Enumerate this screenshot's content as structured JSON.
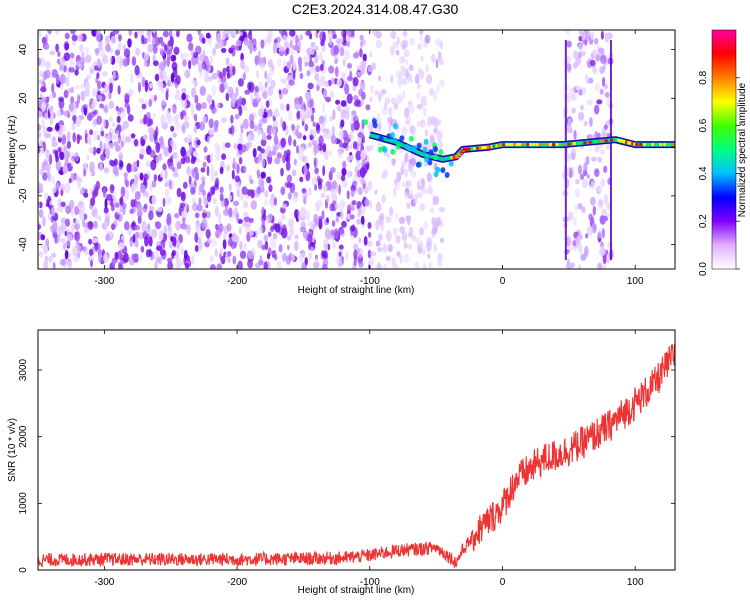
{
  "title": "C2E3.2024.314.08.47.G30",
  "chart_data": [
    {
      "type": "heatmap",
      "xlabel": "Height of straight line (km)",
      "ylabel": "Frequency (Hz)",
      "xlim": [
        -350,
        130
      ],
      "ylim": [
        -50,
        48
      ],
      "x_ticks": [
        -300,
        -200,
        -100,
        0,
        100
      ],
      "y_ticks": [
        -40,
        -20,
        0,
        20,
        40
      ],
      "colorbar": {
        "label": "Normalized spectral amplitude",
        "range": [
          0,
          1
        ],
        "ticks": [
          "0.0",
          "0.2",
          "0.4",
          "0.6",
          "0.8"
        ],
        "colors": [
          "#ffffff",
          "#e0b0ff",
          "#8000ff",
          "#0000ff",
          "#00c0ff",
          "#00ff80",
          "#40ff00",
          "#ffff00",
          "#ff8000",
          "#ff0000",
          "#ff00a0"
        ]
      },
      "noise_regions": [
        {
          "x": [
            -350,
            -100
          ],
          "amplitude": 0.25
        },
        {
          "x": [
            -100,
            -45
          ],
          "amplitude": 0.08
        },
        {
          "x": [
            47,
            82
          ],
          "amplitude": 0.15
        }
      ],
      "tone_track": {
        "points": [
          {
            "x": -100,
            "y": 5
          },
          {
            "x": -80,
            "y": 2
          },
          {
            "x": -60,
            "y": -3
          },
          {
            "x": -45,
            "y": -5
          },
          {
            "x": -35,
            "y": -4
          },
          {
            "x": -30,
            "y": -1
          },
          {
            "x": -10,
            "y": 0
          },
          {
            "x": 0,
            "y": 1
          },
          {
            "x": 20,
            "y": 1
          },
          {
            "x": 45,
            "y": 1
          },
          {
            "x": 85,
            "y": 3
          },
          {
            "x": 100,
            "y": 1
          },
          {
            "x": 130,
            "y": 1
          }
        ]
      },
      "grid": false
    },
    {
      "type": "line",
      "xlabel": "Height of straight line (km)",
      "ylabel": "SNR (10 * v/v)",
      "xlim": [
        -350,
        130
      ],
      "ylim": [
        0,
        3600
      ],
      "x_ticks": [
        -300,
        -200,
        -100,
        0,
        100
      ],
      "y_ticks": [
        0,
        1000,
        2000,
        3000
      ],
      "color": "#ee3333",
      "series": [
        {
          "x": [
            -350,
            -300,
            -250,
            -200,
            -150,
            -120,
            -100,
            -80,
            -60,
            -50,
            -40,
            -35,
            -30,
            -20,
            -10,
            0,
            10,
            20,
            30,
            40,
            50,
            60,
            80,
            100,
            115,
            125,
            130
          ],
          "values": [
            150,
            160,
            160,
            160,
            170,
            180,
            220,
            290,
            320,
            340,
            200,
            110,
            300,
            550,
            750,
            950,
            1350,
            1500,
            1650,
            1720,
            1800,
            1900,
            2150,
            2500,
            2800,
            3100,
            3250
          ],
          "noise": 100
        }
      ],
      "grid": false
    }
  ]
}
